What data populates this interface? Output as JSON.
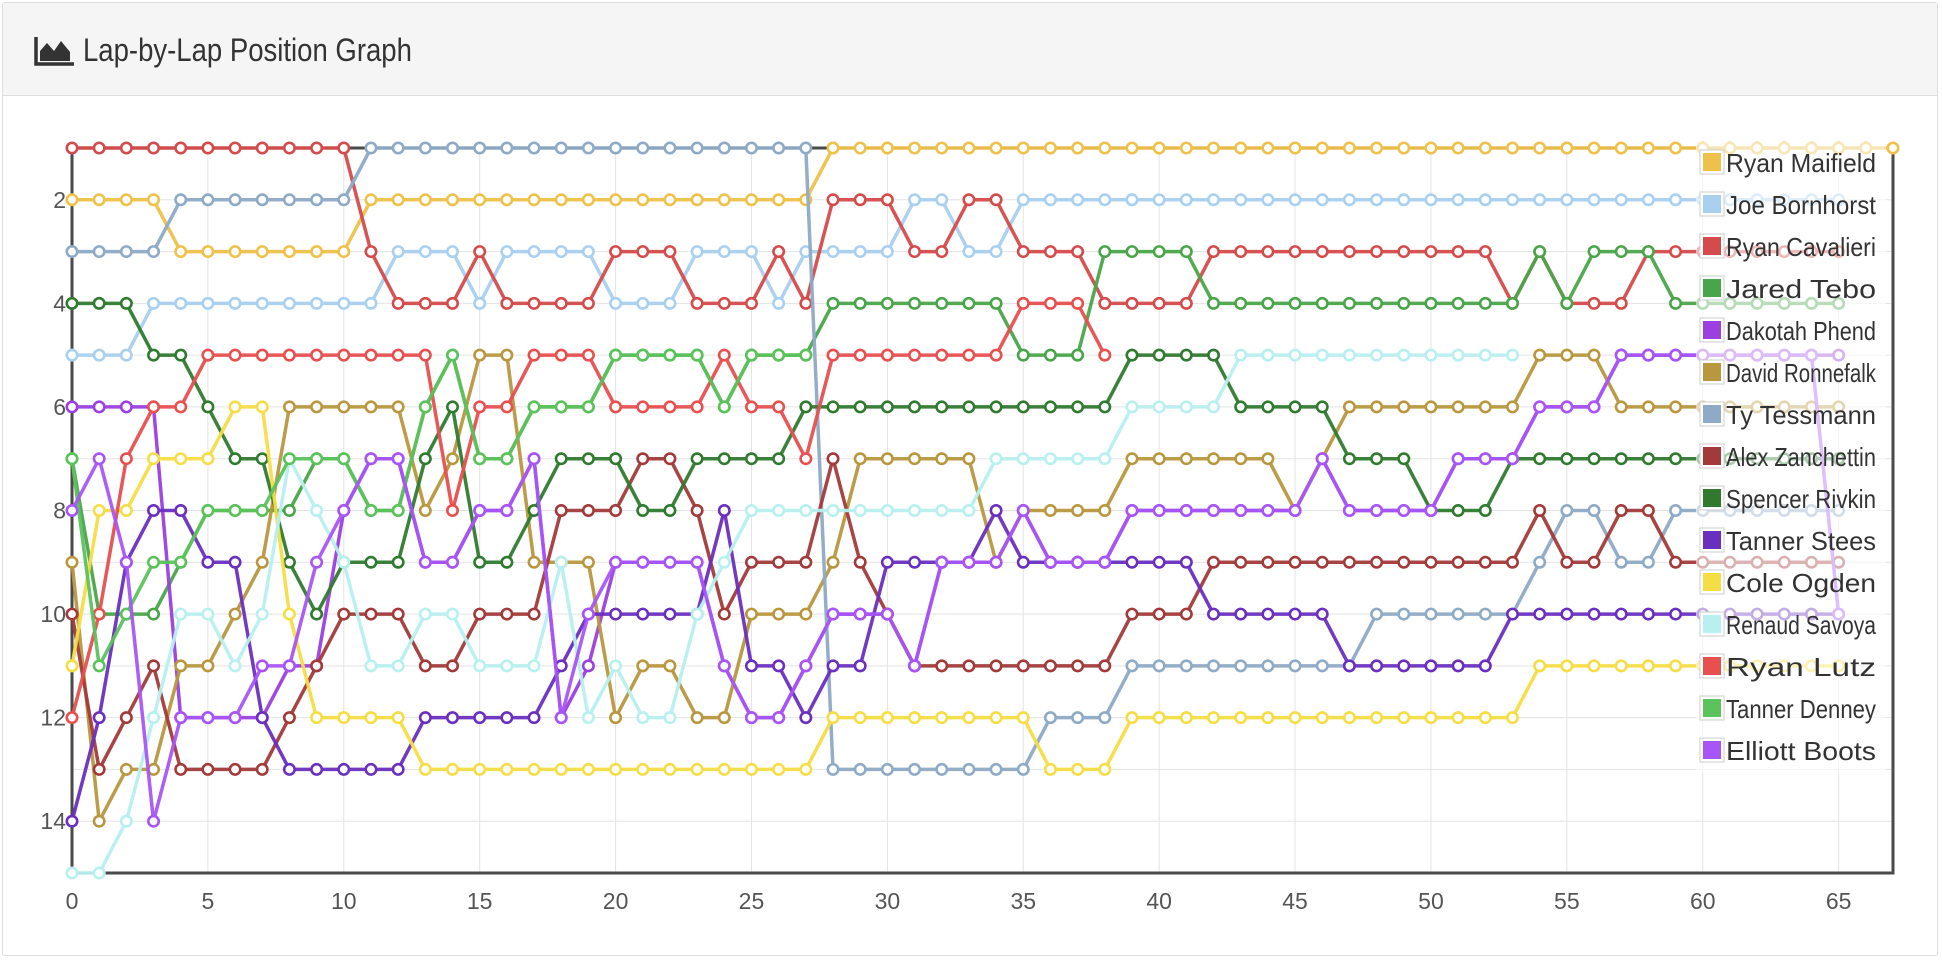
{
  "panel": {
    "title": "Lap-by-Lap Position Graph",
    "icon": "area-chart-icon"
  },
  "chart_data": {
    "type": "line",
    "title": "",
    "xlabel": "",
    "ylabel": "",
    "xlim": [
      0,
      67
    ],
    "ylim": [
      15,
      1
    ],
    "y_inverted": true,
    "x_ticks": [
      0,
      5,
      10,
      15,
      20,
      25,
      30,
      35,
      40,
      45,
      50,
      55,
      60,
      65
    ],
    "y_ticks": [
      2,
      4,
      6,
      8,
      10,
      12,
      14
    ],
    "grid": true,
    "legend_position": "top-right",
    "series": [
      {
        "name": "Ryan Maifield",
        "color": "#eec14a",
        "values": [
          2,
          2,
          2,
          2,
          3,
          3,
          3,
          3,
          3,
          3,
          3,
          2,
          2,
          2,
          2,
          2,
          2,
          2,
          2,
          2,
          2,
          2,
          2,
          2,
          2,
          2,
          2,
          2,
          1,
          1,
          1,
          1,
          1,
          1,
          1,
          1,
          1,
          1,
          1,
          1,
          1,
          1,
          1,
          1,
          1,
          1,
          1,
          1,
          1,
          1,
          1,
          1,
          1,
          1,
          1,
          1,
          1,
          1,
          1,
          1,
          1,
          1,
          1,
          1,
          1,
          1,
          1,
          1
        ]
      },
      {
        "name": "Joe Bornhorst",
        "color": "#a9d0f0",
        "values": [
          5,
          5,
          5,
          4,
          4,
          4,
          4,
          4,
          4,
          4,
          4,
          4,
          3,
          3,
          3,
          4,
          3,
          3,
          3,
          3,
          4,
          4,
          4,
          3,
          3,
          3,
          4,
          3,
          3,
          3,
          3,
          2,
          2,
          3,
          3,
          2,
          2,
          2,
          2,
          2,
          2,
          2,
          2,
          2,
          2,
          2,
          2,
          2,
          2,
          2,
          2,
          2,
          2,
          2,
          2,
          2,
          2,
          2,
          2,
          2,
          2,
          2,
          2,
          2,
          2,
          2
        ]
      },
      {
        "name": "Ryan Cavalieri",
        "color": "#d54b4b",
        "values": [
          1,
          1,
          1,
          1,
          1,
          1,
          1,
          1,
          1,
          1,
          1,
          3,
          4,
          4,
          4,
          3,
          4,
          4,
          4,
          4,
          3,
          3,
          3,
          4,
          4,
          4,
          3,
          4,
          2,
          2,
          2,
          3,
          3,
          2,
          2,
          3,
          3,
          3,
          4,
          4,
          4,
          4,
          3,
          3,
          3,
          3,
          3,
          3,
          3,
          3,
          3,
          3,
          3,
          4,
          3,
          4,
          4,
          4,
          3,
          3,
          3,
          3,
          3,
          3,
          3,
          3
        ]
      },
      {
        "name": "Jared Tebo",
        "color": "#4aa54a",
        "values": [
          7,
          10,
          10,
          10,
          9,
          8,
          8,
          8,
          8,
          7,
          7,
          8,
          8,
          6,
          5,
          7,
          7,
          6,
          6,
          6,
          5,
          5,
          5,
          5,
          6,
          5,
          5,
          5,
          4,
          4,
          4,
          4,
          4,
          4,
          4,
          5,
          5,
          5,
          3,
          3,
          3,
          3,
          4,
          4,
          4,
          4,
          4,
          4,
          4,
          4,
          4,
          4,
          4,
          4,
          3,
          4,
          3,
          3,
          3,
          4,
          4,
          4,
          4,
          4,
          4,
          4
        ]
      },
      {
        "name": "Dakotah Phend",
        "color": "#9b3fe0",
        "values": [
          6,
          6,
          6,
          6,
          12,
          12,
          12,
          12,
          11,
          11,
          8,
          7,
          7,
          9,
          9,
          8,
          8,
          7,
          12,
          11,
          9,
          9,
          9,
          9,
          11,
          12,
          12,
          11,
          10,
          10,
          10,
          11,
          9,
          9,
          9,
          8,
          9,
          9,
          9,
          8,
          8,
          8,
          8,
          8,
          8,
          8,
          7,
          8,
          8,
          8,
          8,
          7,
          7,
          7,
          6,
          6,
          6,
          5,
          5,
          5,
          5,
          5,
          5,
          5,
          5,
          5
        ]
      },
      {
        "name": "David Ronnefalk",
        "color": "#b8973e",
        "values": [
          9,
          14,
          13,
          13,
          11,
          11,
          10,
          9,
          6,
          6,
          6,
          6,
          6,
          8,
          7,
          5,
          5,
          9,
          9,
          9,
          12,
          11,
          11,
          12,
          12,
          10,
          10,
          10,
          9,
          7,
          7,
          7,
          7,
          7,
          9,
          8,
          8,
          8,
          8,
          7,
          7,
          7,
          7,
          7,
          7,
          8,
          7,
          6,
          6,
          6,
          6,
          6,
          6,
          6,
          5,
          5,
          5,
          6,
          6,
          6,
          6,
          6,
          6,
          6,
          6,
          6
        ]
      },
      {
        "name": "Ty Tessmann",
        "color": "#8eaac6",
        "values": [
          3,
          3,
          3,
          3,
          2,
          2,
          2,
          2,
          2,
          2,
          2,
          1,
          1,
          1,
          1,
          1,
          1,
          1,
          1,
          1,
          1,
          1,
          1,
          1,
          1,
          1,
          1,
          1,
          13,
          13,
          13,
          13,
          13,
          13,
          13,
          13,
          12,
          12,
          12,
          11,
          11,
          11,
          11,
          11,
          11,
          11,
          11,
          11,
          10,
          10,
          10,
          10,
          10,
          10,
          9,
          8,
          8,
          9,
          9,
          8,
          8,
          8,
          8,
          8,
          8,
          8
        ]
      },
      {
        "name": "Alex Zanchettin",
        "color": "#a23a3a",
        "values": [
          10,
          13,
          12,
          11,
          13,
          13,
          13,
          13,
          12,
          11,
          10,
          10,
          10,
          11,
          11,
          10,
          10,
          10,
          8,
          8,
          8,
          7,
          7,
          8,
          10,
          9,
          9,
          9,
          7,
          9,
          10,
          11,
          11,
          11,
          11,
          11,
          11,
          11,
          11,
          10,
          10,
          10,
          9,
          9,
          9,
          9,
          9,
          9,
          9,
          9,
          9,
          9,
          9,
          9,
          8,
          9,
          9,
          8,
          8,
          9,
          9,
          9,
          9,
          9,
          9,
          9
        ]
      },
      {
        "name": "Spencer Rivkin",
        "color": "#2f7a2f",
        "values": [
          4,
          4,
          4,
          5,
          5,
          6,
          7,
          7,
          9,
          10,
          9,
          9,
          9,
          7,
          6,
          9,
          9,
          8,
          7,
          7,
          7,
          8,
          8,
          7,
          7,
          7,
          7,
          6,
          6,
          6,
          6,
          6,
          6,
          6,
          6,
          6,
          6,
          6,
          6,
          5,
          5,
          5,
          5,
          6,
          6,
          6,
          6,
          7,
          7,
          7,
          8,
          8,
          8,
          7,
          7,
          7,
          7,
          7,
          7,
          7,
          7,
          7,
          7,
          7,
          7,
          7
        ]
      },
      {
        "name": "Tanner Stees",
        "color": "#6a2fbf",
        "values": [
          14,
          12,
          9,
          8,
          8,
          9,
          9,
          12,
          13,
          13,
          13,
          13,
          13,
          12,
          12,
          12,
          12,
          12,
          11,
          10,
          10,
          10,
          10,
          10,
          8,
          11,
          11,
          12,
          11,
          11,
          9,
          9,
          9,
          9,
          8,
          9,
          9,
          9,
          9,
          9,
          9,
          9,
          10,
          10,
          10,
          10,
          10,
          11,
          11,
          11,
          11,
          11,
          11,
          10,
          10,
          10,
          10,
          10,
          10,
          10,
          10,
          10,
          10,
          10,
          10,
          10
        ]
      },
      {
        "name": "Cole Ogden",
        "color": "#f5dd45",
        "values": [
          11,
          8,
          8,
          7,
          7,
          7,
          6,
          6,
          10,
          12,
          12,
          12,
          12,
          13,
          13,
          13,
          13,
          13,
          13,
          13,
          13,
          13,
          13,
          13,
          13,
          13,
          13,
          13,
          12,
          12,
          12,
          12,
          12,
          12,
          12,
          12,
          13,
          13,
          13,
          12,
          12,
          12,
          12,
          12,
          12,
          12,
          12,
          12,
          12,
          12,
          12,
          12,
          12,
          12,
          11,
          11,
          11,
          11,
          11,
          11,
          11,
          11,
          11,
          11,
          11,
          11
        ]
      },
      {
        "name": "Renaud Savoya",
        "color": "#b8efef",
        "values": [
          15,
          15,
          14,
          12,
          10,
          10,
          11,
          10,
          7,
          8,
          9,
          11,
          11,
          10,
          10,
          11,
          11,
          11,
          9,
          12,
          11,
          12,
          12,
          10,
          9,
          8,
          8,
          8,
          8,
          8,
          8,
          8,
          8,
          8,
          7,
          7,
          7,
          7,
          7,
          6,
          6,
          6,
          6,
          5,
          5,
          5,
          5,
          5,
          5,
          5,
          5,
          5,
          5,
          5
        ]
      },
      {
        "name": "Ryan Lutz",
        "color": "#e84f4f",
        "values": [
          12,
          10,
          7,
          6,
          6,
          5,
          5,
          5,
          5,
          5,
          5,
          5,
          5,
          5,
          8,
          6,
          6,
          5,
          5,
          5,
          6,
          6,
          6,
          6,
          5,
          6,
          6,
          7,
          5,
          5,
          5,
          5,
          5,
          5,
          5,
          4,
          4,
          4,
          5
        ]
      },
      {
        "name": "Tanner Denney",
        "color": "#5cc25c",
        "values": [
          7,
          11,
          10,
          9,
          9,
          8,
          8,
          8,
          7,
          7,
          7,
          8,
          8,
          6,
          5,
          7,
          7,
          6,
          6,
          6,
          5,
          5,
          5,
          5,
          6,
          5,
          5,
          5
        ]
      },
      {
        "name": "Elliott Boots",
        "color": "#a855f7",
        "values": [
          8,
          7,
          9,
          14,
          12,
          12,
          12,
          11,
          11,
          9,
          8,
          7,
          7,
          9,
          9,
          8,
          8,
          7,
          12,
          10,
          9,
          9,
          9,
          9,
          11,
          12,
          12,
          11,
          10,
          10,
          10,
          11,
          9,
          9,
          9,
          8,
          9,
          9,
          9,
          8,
          8,
          8,
          8,
          8,
          8,
          8,
          7,
          8,
          8,
          8,
          8,
          7,
          7,
          7,
          6,
          6,
          6,
          5,
          5,
          5,
          5,
          5,
          5,
          5,
          5,
          10
        ]
      }
    ]
  }
}
